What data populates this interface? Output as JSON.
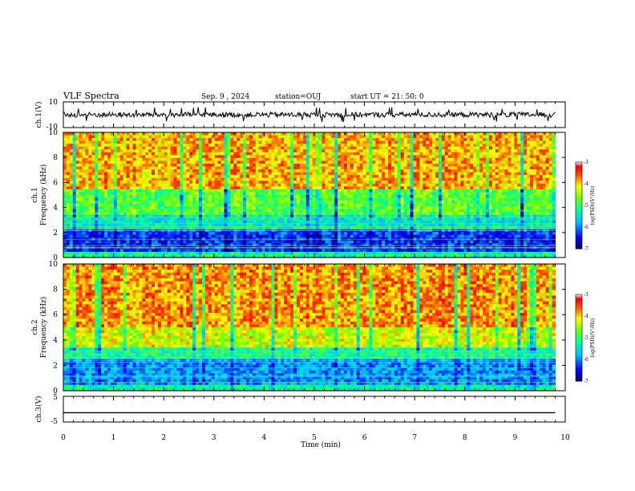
{
  "header": {
    "title": "VLF Spectra",
    "date": "Sep. 9 , 2024",
    "station": "station=OUJ",
    "start": "start UT =  21: 50: 0"
  },
  "chart_data": [
    {
      "type": "line",
      "name": "waveform-ch1",
      "ylabel": "ch.1(V)",
      "ylim": [
        -10,
        10
      ],
      "ytick_labels": [
        "10",
        "-10"
      ],
      "xlim": [
        0,
        10
      ],
      "description_values": {
        "baseline_v": 0,
        "noise_amplitude_v": 2,
        "spike_extent_v": 6
      }
    },
    {
      "type": "heatmap",
      "name": "spectrogram-ch1",
      "ylabel": "ch.1\nFrequency (kHz)",
      "ylabel_line1": "ch.1",
      "ylabel_line2": "Frequency (kHz)",
      "ylim": [
        0,
        10
      ],
      "ytick_labels": [
        "0",
        "2",
        "4",
        "6",
        "8",
        "10"
      ],
      "xlim": [
        0,
        10
      ],
      "colorbar": {
        "label": "log(PSD)(V²/Hz)",
        "range": [
          -7,
          -3
        ],
        "tick_labels": [
          "-3",
          "-4",
          "-5",
          "-6",
          "-7"
        ]
      },
      "bands_khz_to_log_psd": [
        {
          "f": [
            0.0,
            0.4
          ],
          "v": -5.2
        },
        {
          "f": [
            0.4,
            2.2
          ],
          "v": -6.3
        },
        {
          "f": [
            2.2,
            3.5
          ],
          "v": -5.4
        },
        {
          "f": [
            3.5,
            5.5
          ],
          "v": -4.8
        },
        {
          "f": [
            5.5,
            10.0
          ],
          "v": -3.9
        }
      ]
    },
    {
      "type": "heatmap",
      "name": "spectrogram-ch2",
      "ylabel": "ch.2\nFrequency (kHz)",
      "ylabel_line1": "ch.2",
      "ylabel_line2": "Frequency (kHz)",
      "ylim": [
        0,
        10
      ],
      "ytick_labels": [
        "0",
        "2",
        "4",
        "6",
        "8",
        "10"
      ],
      "xlim": [
        0,
        10
      ],
      "colorbar": {
        "label": "log(PSD)(V²/Hz)",
        "range": [
          -7,
          -3
        ],
        "tick_labels": [
          "-3",
          "-4",
          "-5",
          "-6",
          "-7"
        ]
      },
      "bands_khz_to_log_psd": [
        {
          "f": [
            0.0,
            0.5
          ],
          "v": -5.3
        },
        {
          "f": [
            0.5,
            2.5
          ],
          "v": -5.9
        },
        {
          "f": [
            2.5,
            3.5
          ],
          "v": -5.1
        },
        {
          "f": [
            3.5,
            5.0
          ],
          "v": -4.3
        },
        {
          "f": [
            5.0,
            10.0
          ],
          "v": -3.8
        }
      ]
    },
    {
      "type": "line",
      "name": "waveform-ch3",
      "ylabel": "ch.3(V)",
      "ylim": [
        -5,
        5
      ],
      "ytick_labels": [
        "5",
        "-5"
      ],
      "xlim": [
        0,
        10
      ],
      "x": [
        0,
        9.8
      ],
      "y": [
        -1.4,
        -1.4
      ]
    }
  ],
  "xaxis": {
    "label": "Time (min)",
    "ticks": [
      0,
      1,
      2,
      3,
      4,
      5,
      6,
      7,
      8,
      9,
      10
    ],
    "tick_labels": [
      "0",
      "1",
      "2",
      "3",
      "4",
      "5",
      "6",
      "7",
      "8",
      "9",
      "10"
    ],
    "data_end": 9.8
  },
  "colors": {
    "axis": "#000000",
    "background": "#ffffff"
  }
}
